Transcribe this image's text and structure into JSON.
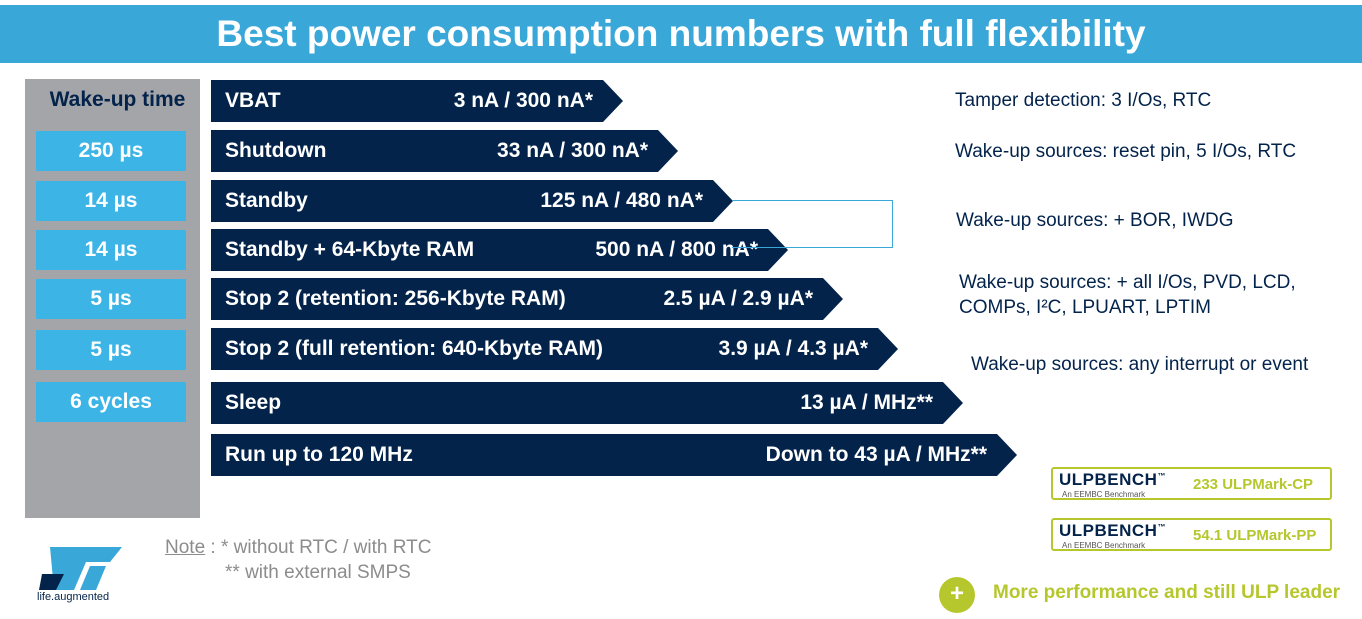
{
  "title": "Best power consumption numbers with full flexibility",
  "wake_up": {
    "header": "Wake-up time",
    "times": [
      "250 µs",
      "14 µs",
      "14 µs",
      "5 µs",
      "5 µs",
      "6 cycles"
    ]
  },
  "modes": [
    {
      "label": "VBAT",
      "value": "3 nA / 300 nA*"
    },
    {
      "label": "Shutdown",
      "value": "33 nA / 300 nA*"
    },
    {
      "label": "Standby",
      "value": "125 nA / 480 nA*"
    },
    {
      "label": "Standby + 64-Kbyte RAM",
      "value": "500 nA / 800 nA*"
    },
    {
      "label": "Stop 2 (retention: 256-Kbyte RAM)",
      "value": "2.5 µA / 2.9 µA*"
    },
    {
      "label": "Stop 2 (full retention: 640-Kbyte RAM)",
      "value": "3.9 µA / 4.3 µA*"
    },
    {
      "label": "Sleep",
      "value": "13 µA / MHz**"
    },
    {
      "label": "Run up to 120 MHz",
      "value": "Down to 43 µA / MHz**"
    }
  ],
  "sources": {
    "tamper": "Tamper detection: 3 I/Os, RTC",
    "shutdown": "Wake-up sources: reset pin, 5 I/Os, RTC",
    "standby": "Wake-up sources: + BOR, IWDG",
    "stop2_line1": "Wake-up sources: + all I/Os, PVD, LCD,",
    "stop2_line2": "COMPs, I²C, LPUART, LPTIM",
    "sleep": "Wake-up sources: any interrupt or event"
  },
  "benchmarks": [
    {
      "logo": "ULPBENCH",
      "tm": "™",
      "sub": "An EEMBC Benchmark",
      "score": "233 ULPMark-CP"
    },
    {
      "logo": "ULPBENCH",
      "tm": "™",
      "sub": "An EEMBC Benchmark",
      "score": "54.1 ULPMark-PP"
    }
  ],
  "note": {
    "label": "Note",
    "line1": " : * without RTC / with RTC",
    "line2": "** with external SMPS"
  },
  "footer": {
    "plus": "+",
    "tagline": "More performance and still ULP leader",
    "brand": "life.augmented"
  },
  "colors": {
    "banner": "#3aa7d9",
    "navy": "#03234b",
    "wake_box": "#3cb4e6",
    "panel": "#a3a5a8",
    "accent_green": "#b6c72d"
  }
}
